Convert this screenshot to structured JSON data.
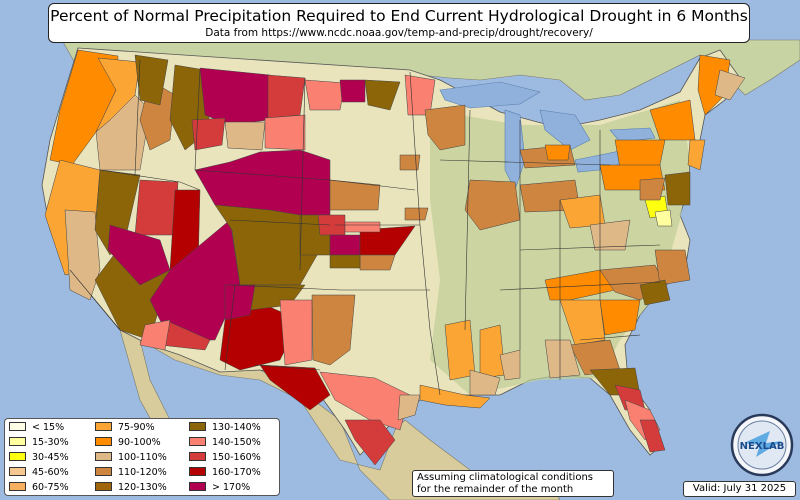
{
  "header": {
    "title": "Percent of Normal Precipitation Required to End Current Hydrological Drought in 6 Months",
    "subtitle": "Data from https://www.ncdc.noaa.gov/temp-and-precip/drought/recovery/"
  },
  "legend": {
    "items": [
      {
        "label": "< 15%",
        "color": "#ffffe8"
      },
      {
        "label": "15-30%",
        "color": "#ffffa0"
      },
      {
        "label": "30-45%",
        "color": "#ffff10"
      },
      {
        "label": "45-60%",
        "color": "#f6c890"
      },
      {
        "label": "60-75%",
        "color": "#f7b060"
      },
      {
        "label": "75-90%",
        "color": "#fba535"
      },
      {
        "label": "90-100%",
        "color": "#ff8c00"
      },
      {
        "label": "100-110%",
        "color": "#deb887"
      },
      {
        "label": "110-120%",
        "color": "#cd853f"
      },
      {
        "label": "120-130%",
        "color": "#a0650a"
      },
      {
        "label": "130-140%",
        "color": "#8b6508"
      },
      {
        "label": "140-150%",
        "color": "#fa8072"
      },
      {
        "label": "150-160%",
        "color": "#d43c3c"
      },
      {
        "label": "160-170%",
        "color": "#b40000"
      },
      {
        "label": "> 170%",
        "color": "#b0004f"
      }
    ]
  },
  "note": {
    "line1": "Assuming climatological conditions",
    "line2": "for the remainder of the month"
  },
  "valid_label": "Valid: July 31 2025",
  "logo_text": "NEXLAB",
  "colors": {
    "ocean": "#9dbbe0",
    "land": "#e9e4bc",
    "land_green": "#b9c98f",
    "canada": "#c8d3a4",
    "mexico": "#d8cc9c",
    "lakes": "#8fb1dc"
  }
}
